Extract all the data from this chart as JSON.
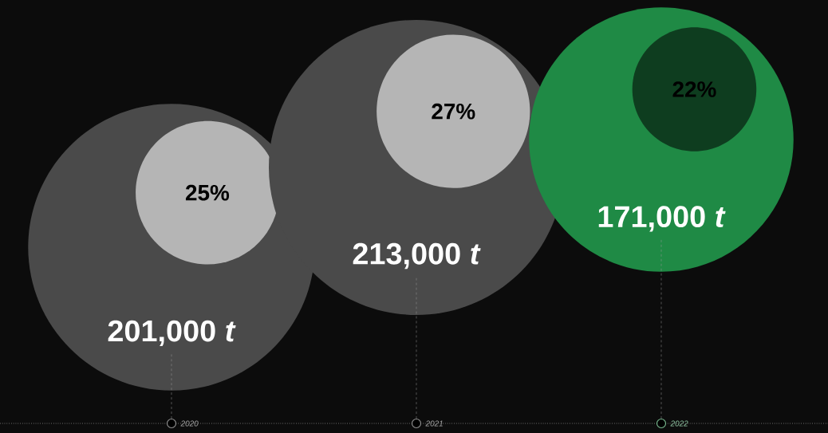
{
  "chart_data": {
    "type": "other",
    "categories": [
      "2020",
      "2021",
      "2022"
    ],
    "series": [
      {
        "values": [
          201000,
          213000,
          171000
        ],
        "value_labels": [
          "201,000 *t*",
          "213,000 *t*",
          "171,000 *t*"
        ],
        "colors": [
          "#4a4a4a",
          "#4a4a4a",
          "#1f8a45"
        ]
      },
      {
        "values": [
          25,
          27,
          22
        ],
        "value_labels": [
          "25%",
          "27%",
          "22%"
        ],
        "colors": [
          "#b5b5b5",
          "#b5b5b5",
          "#0e3d1f"
        ]
      }
    ]
  }
}
